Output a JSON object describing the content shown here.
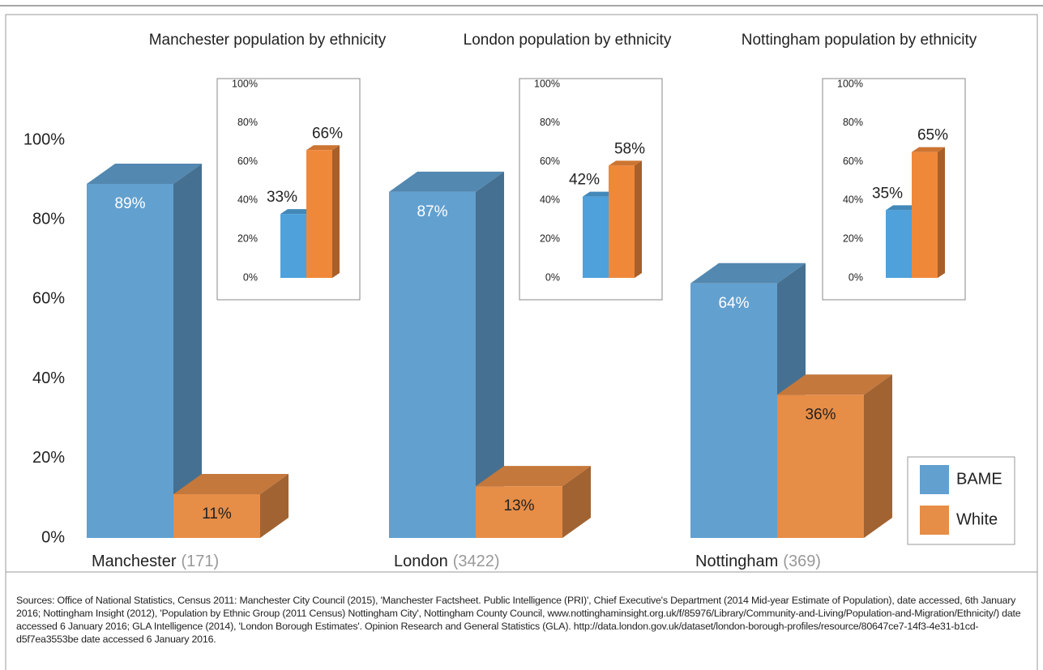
{
  "chart_data": [
    {
      "type": "bar3d",
      "categories": [
        "Manchester",
        "London",
        "Nottingham"
      ],
      "category_notes": [
        "(171)",
        "(3422)",
        "(369)"
      ],
      "series": [
        {
          "name": "BAME",
          "color": "#62a0cf",
          "values": [
            89,
            87,
            64
          ],
          "value_labels": [
            "89%",
            "87%",
            "64%"
          ]
        },
        {
          "name": "White",
          "color": "#e68d47",
          "values": [
            11,
            13,
            36
          ],
          "value_labels": [
            "11%",
            "13%",
            "36%"
          ]
        }
      ],
      "ylim": [
        0,
        100
      ],
      "yticks": [
        {
          "value": 0,
          "label": "0%"
        },
        {
          "value": 20,
          "label": "20%"
        },
        {
          "value": 40,
          "label": "40%"
        },
        {
          "value": 60,
          "label": "60%"
        },
        {
          "value": 80,
          "label": "80%"
        },
        {
          "value": 100,
          "label": "100%"
        }
      ],
      "legend": "lower right"
    },
    {
      "type": "bar3d",
      "title": "Manchester population by ethnicity",
      "series": [
        {
          "name": "BAME",
          "color": "#4ea1da",
          "values": [
            33
          ],
          "value_labels": [
            "33%"
          ]
        },
        {
          "name": "White",
          "color": "#f0883a",
          "values": [
            66
          ],
          "value_labels": [
            "66%"
          ]
        }
      ],
      "ylim": [
        0,
        100
      ],
      "yticks": [
        {
          "value": 0,
          "label": "0%"
        },
        {
          "value": 20,
          "label": "20%"
        },
        {
          "value": 40,
          "label": "40%"
        },
        {
          "value": 60,
          "label": "60%"
        },
        {
          "value": 80,
          "label": "80%"
        },
        {
          "value": 100,
          "label": "100%"
        }
      ]
    },
    {
      "type": "bar3d",
      "title": "London population by ethnicity",
      "series": [
        {
          "name": "BAME",
          "color": "#4ea1da",
          "values": [
            42
          ],
          "value_labels": [
            "42%"
          ]
        },
        {
          "name": "White",
          "color": "#f0883a",
          "values": [
            58
          ],
          "value_labels": [
            "58%"
          ]
        }
      ],
      "ylim": [
        0,
        100
      ],
      "yticks": [
        {
          "value": 0,
          "label": "0%"
        },
        {
          "value": 20,
          "label": "20%"
        },
        {
          "value": 40,
          "label": "40%"
        },
        {
          "value": 60,
          "label": "60%"
        },
        {
          "value": 80,
          "label": "80%"
        },
        {
          "value": 100,
          "label": "100%"
        }
      ]
    },
    {
      "type": "bar3d",
      "title": "Nottingham population by ethnicity",
      "series": [
        {
          "name": "BAME",
          "color": "#4ea1da",
          "values": [
            35
          ],
          "value_labels": [
            "35%"
          ]
        },
        {
          "name": "White",
          "color": "#f0883a",
          "values": [
            65
          ],
          "value_labels": [
            "65%"
          ]
        }
      ],
      "ylim": [
        0,
        100
      ],
      "yticks": [
        {
          "value": 0,
          "label": "0%"
        },
        {
          "value": 20,
          "label": "20%"
        },
        {
          "value": 40,
          "label": "40%"
        },
        {
          "value": 60,
          "label": "60%"
        },
        {
          "value": 80,
          "label": "80%"
        },
        {
          "value": 100,
          "label": "100%"
        }
      ]
    }
  ],
  "sources": {
    "label": "Sources",
    "text": ": Office of National Statistics, Census 2011: Manchester City Council (2015), 'Manchester Factsheet.  Public Intelligence (PRI)', Chief Executive's Department (2014 Mid-year Estimate of Population), date accessed, 6th January 2016; Nottingham Insight (2012), 'Population by Ethnic Group (2011 Census) Nottingham City', Nottingham County Council, www.nottinghaminsight.org.uk/f/85976/Library/Community-and-Living/Population-and-Migration/Ethnicity/) date accessed 6 January 2016; GLA Intelligence (2014), 'London Borough Estimates'.  Opinion Research and General Statistics (GLA).  http://data.london.gov.uk/dataset/london-borough-profiles/resource/80647ce7-14f3-4e31-b1cd-d5f7ea3553be date accessed 6 January 2016."
  }
}
